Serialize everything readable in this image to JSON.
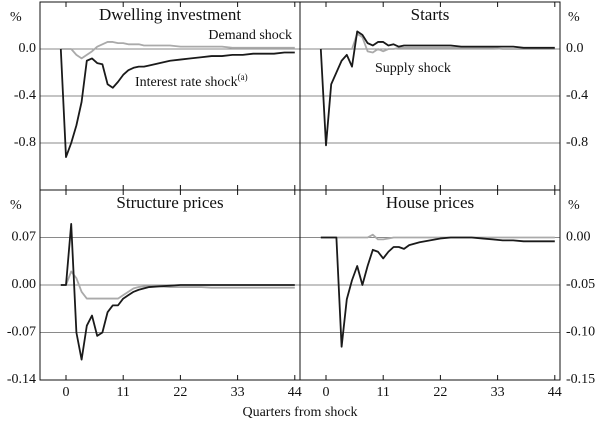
{
  "x_label": "Quarters from shock",
  "chart_data": [
    {
      "type": "line",
      "title": "Dwelling investment",
      "y_unit": "%",
      "annotations": [
        {
          "text": "Demand shock"
        },
        {
          "text": "Interest rate shock",
          "superscript": "(a)"
        }
      ],
      "xlim": [
        -5,
        45
      ],
      "xticks": [
        0,
        11,
        22,
        33,
        44
      ],
      "ylim": [
        -1.2,
        0.4
      ],
      "yticks": [
        {
          "value": 0,
          "label": "0.0"
        },
        -0.4,
        -0.8
      ],
      "grid": true,
      "x": [
        -1,
        0,
        1,
        2,
        3,
        4,
        5,
        6,
        7,
        8,
        9,
        10,
        11,
        12,
        13,
        14,
        15,
        16,
        18,
        20,
        22,
        24,
        26,
        28,
        30,
        32,
        34,
        36,
        38,
        40,
        42,
        44
      ],
      "series": [
        {
          "color": "#aaaaaa",
          "values": [
            0,
            0,
            0,
            -0.05,
            -0.08,
            -0.05,
            -0.02,
            0.02,
            0.04,
            0.06,
            0.06,
            0.05,
            0.05,
            0.04,
            0.04,
            0.04,
            0.03,
            0.03,
            0.03,
            0.03,
            0.02,
            0.02,
            0.02,
            0.02,
            0.02,
            0.01,
            0.01,
            0.01,
            0.01,
            0.01,
            0.01,
            0.01
          ]
        },
        {
          "color": "#1a1a1a",
          "values": [
            0,
            -0.92,
            -0.8,
            -0.65,
            -0.45,
            -0.1,
            -0.08,
            -0.12,
            -0.13,
            -0.3,
            -0.33,
            -0.28,
            -0.22,
            -0.18,
            -0.16,
            -0.15,
            -0.15,
            -0.14,
            -0.12,
            -0.1,
            -0.09,
            -0.08,
            -0.07,
            -0.06,
            -0.06,
            -0.05,
            -0.05,
            -0.04,
            -0.04,
            -0.04,
            -0.03,
            -0.03
          ]
        }
      ]
    },
    {
      "type": "line",
      "title": "Starts",
      "y_unit": "%",
      "annotations": [
        {
          "text": "Supply shock"
        }
      ],
      "xlim": [
        -5,
        45
      ],
      "xticks": [
        0,
        11,
        22,
        33,
        44
      ],
      "ylim": [
        -1.2,
        0.4
      ],
      "yticks": [
        {
          "value": 0,
          "label": "0.0"
        },
        -0.4,
        -0.8
      ],
      "grid": true,
      "x": [
        -1,
        0,
        1,
        2,
        3,
        4,
        5,
        6,
        7,
        8,
        9,
        10,
        11,
        12,
        13,
        14,
        15,
        16,
        18,
        20,
        22,
        24,
        26,
        28,
        30,
        32,
        34,
        36,
        38,
        40,
        42,
        44
      ],
      "series": [
        {
          "color": "#aaaaaa",
          "values": [
            0,
            0,
            0,
            0,
            0,
            0,
            0,
            0.13,
            0.1,
            -0.02,
            -0.03,
            0,
            -0.02,
            0,
            0,
            0.01,
            0.01,
            0.01,
            0.01,
            0.01,
            0.01,
            0.01,
            0.01,
            0.01,
            0.01,
            0.01,
            0,
            0,
            0,
            0,
            0,
            0
          ]
        },
        {
          "color": "#1a1a1a",
          "values": [
            0,
            -0.82,
            -0.3,
            -0.2,
            -0.1,
            -0.05,
            -0.15,
            0.15,
            0.12,
            0.05,
            0.03,
            0.06,
            0.06,
            0.03,
            0.04,
            0.02,
            0.03,
            0.03,
            0.03,
            0.03,
            0.03,
            0.03,
            0.02,
            0.02,
            0.02,
            0.02,
            0.02,
            0.02,
            0.01,
            0.01,
            0.01,
            0.01
          ]
        }
      ]
    },
    {
      "type": "line",
      "title": "Structure prices",
      "y_unit": "%",
      "xlim": [
        -5,
        45
      ],
      "xticks": [
        0,
        11,
        22,
        33,
        44
      ],
      "ylim": [
        -0.14,
        0.14
      ],
      "yticks": [
        0.07,
        {
          "value": 0,
          "label": "0.00"
        },
        -0.07,
        -0.14
      ],
      "grid": true,
      "x": [
        -1,
        0,
        1,
        2,
        3,
        4,
        5,
        6,
        7,
        8,
        9,
        10,
        11,
        12,
        13,
        14,
        15,
        16,
        18,
        20,
        22,
        24,
        26,
        28,
        30,
        32,
        34,
        36,
        38,
        40,
        42,
        44
      ],
      "series": [
        {
          "color": "#aaaaaa",
          "values": [
            0,
            0,
            0.02,
            0.01,
            -0.01,
            -0.02,
            -0.02,
            -0.02,
            -0.02,
            -0.02,
            -0.02,
            -0.02,
            -0.015,
            -0.01,
            -0.005,
            -0.003,
            -0.002,
            -0.002,
            -0.002,
            -0.003,
            -0.003,
            -0.003,
            -0.003,
            -0.004,
            -0.004,
            -0.004,
            -0.004,
            -0.004,
            -0.004,
            -0.004,
            -0.004,
            -0.004
          ]
        },
        {
          "color": "#1a1a1a",
          "values": [
            0,
            0,
            0.09,
            -0.07,
            -0.11,
            -0.06,
            -0.045,
            -0.075,
            -0.07,
            -0.04,
            -0.03,
            -0.03,
            -0.02,
            -0.015,
            -0.01,
            -0.007,
            -0.005,
            -0.003,
            -0.002,
            -0.001,
            0,
            0,
            0,
            0,
            0,
            0,
            0,
            0,
            0,
            0,
            0,
            0
          ]
        }
      ]
    },
    {
      "type": "line",
      "title": "House prices",
      "y_unit": "%",
      "xlim": [
        -5,
        45
      ],
      "xticks": [
        0,
        11,
        22,
        33,
        44
      ],
      "ylim": [
        -0.15,
        0.05
      ],
      "yticks": [
        {
          "value": 0,
          "label": "0.00"
        },
        -0.05,
        {
          "value": -0.1,
          "label": "-0.10"
        },
        -0.15
      ],
      "grid": true,
      "x": [
        -1,
        0,
        1,
        2,
        3,
        4,
        5,
        6,
        7,
        8,
        9,
        10,
        11,
        12,
        13,
        14,
        15,
        16,
        18,
        20,
        22,
        24,
        26,
        28,
        30,
        32,
        34,
        36,
        38,
        40,
        42,
        44
      ],
      "series": [
        {
          "color": "#aaaaaa",
          "values": [
            0,
            0,
            0,
            0,
            0,
            0,
            0,
            0,
            0,
            0,
            0.003,
            -0.002,
            -0.002,
            -0.001,
            0,
            0,
            0,
            0,
            0,
            0,
            0,
            0,
            0,
            0,
            0,
            0,
            0,
            0,
            0,
            0,
            0,
            0
          ]
        },
        {
          "color": "#1a1a1a",
          "values": [
            0,
            0,
            0,
            0,
            -0.115,
            -0.065,
            -0.045,
            -0.03,
            -0.05,
            -0.03,
            -0.013,
            -0.015,
            -0.022,
            -0.015,
            -0.01,
            -0.01,
            -0.012,
            -0.008,
            -0.005,
            -0.003,
            -0.001,
            0,
            0,
            0,
            -0.001,
            -0.002,
            -0.003,
            -0.003,
            -0.004,
            -0.004,
            -0.004,
            -0.004
          ]
        }
      ]
    }
  ]
}
